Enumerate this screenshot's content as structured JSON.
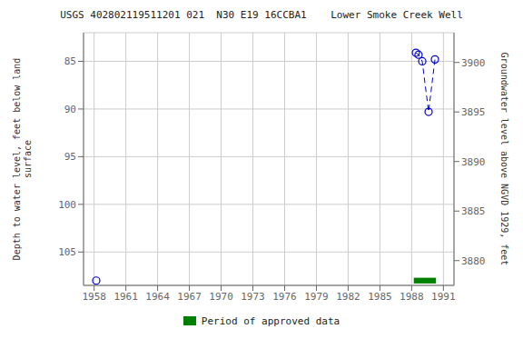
{
  "chart_data": {
    "type": "scatter",
    "title": "USGS 402802119511201 021  N30 E19 16CCBA1    Lower Smoke Creek Well",
    "ylabel": "Depth to water level, feet below land\nsurface",
    "y2label": "Groundwater level above NGVD 1929, feet",
    "xlim": [
      1957,
      1992
    ],
    "xticks": [
      1958,
      1961,
      1964,
      1967,
      1970,
      1973,
      1976,
      1979,
      1982,
      1985,
      1988,
      1991
    ],
    "ylim": [
      108.5,
      82.0
    ],
    "yticks": [
      85,
      90,
      95,
      100,
      105
    ],
    "y2lim": [
      3877.5,
      3903.0
    ],
    "y2ticks": [
      3880,
      3885,
      3890,
      3895,
      3900
    ],
    "grid": true,
    "legend": "bottom",
    "series": [
      {
        "type": "scatter",
        "marker": "circle",
        "color": "#0000cc",
        "x": [
          1958.2,
          1988.4,
          1988.65,
          1989.0,
          1989.6,
          1990.2
        ],
        "values": [
          108.0,
          84.1,
          84.3,
          85.0,
          90.3,
          84.8
        ]
      },
      {
        "type": "line",
        "line_style": "dashed",
        "color": "#0000cc",
        "x": [
          1988.4,
          1988.65,
          1989.0,
          1989.6,
          1990.2
        ],
        "values": [
          84.1,
          84.3,
          85.0,
          90.3,
          84.8
        ]
      }
    ],
    "approved_period": {
      "name": "Period of approved data",
      "color": "#008000",
      "x_start": 1988.2,
      "x_end": 1990.3,
      "y": 108.0,
      "height": 0.6
    }
  }
}
